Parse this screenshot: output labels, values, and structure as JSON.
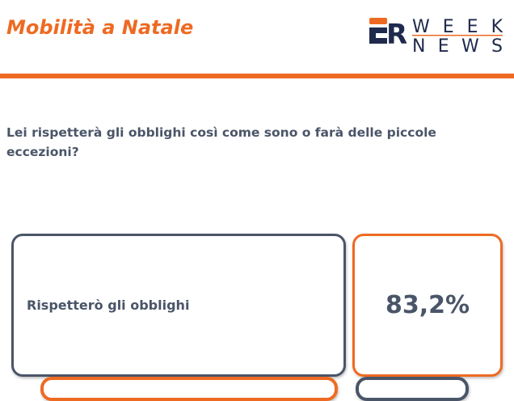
{
  "header": {
    "title": "Mobilità a Natale",
    "logo": {
      "mark": "ER",
      "line1": "WEEK",
      "line2": "NEWS"
    }
  },
  "question": "Lei rispetterà gli obblighi così come sono o farà delle piccole eccezioni?",
  "answers": [
    {
      "label": "Rispetterò gli obblighi",
      "value": "83,2%"
    }
  ],
  "colors": {
    "accent": "#ee6a22",
    "dark": "#4a5568"
  }
}
